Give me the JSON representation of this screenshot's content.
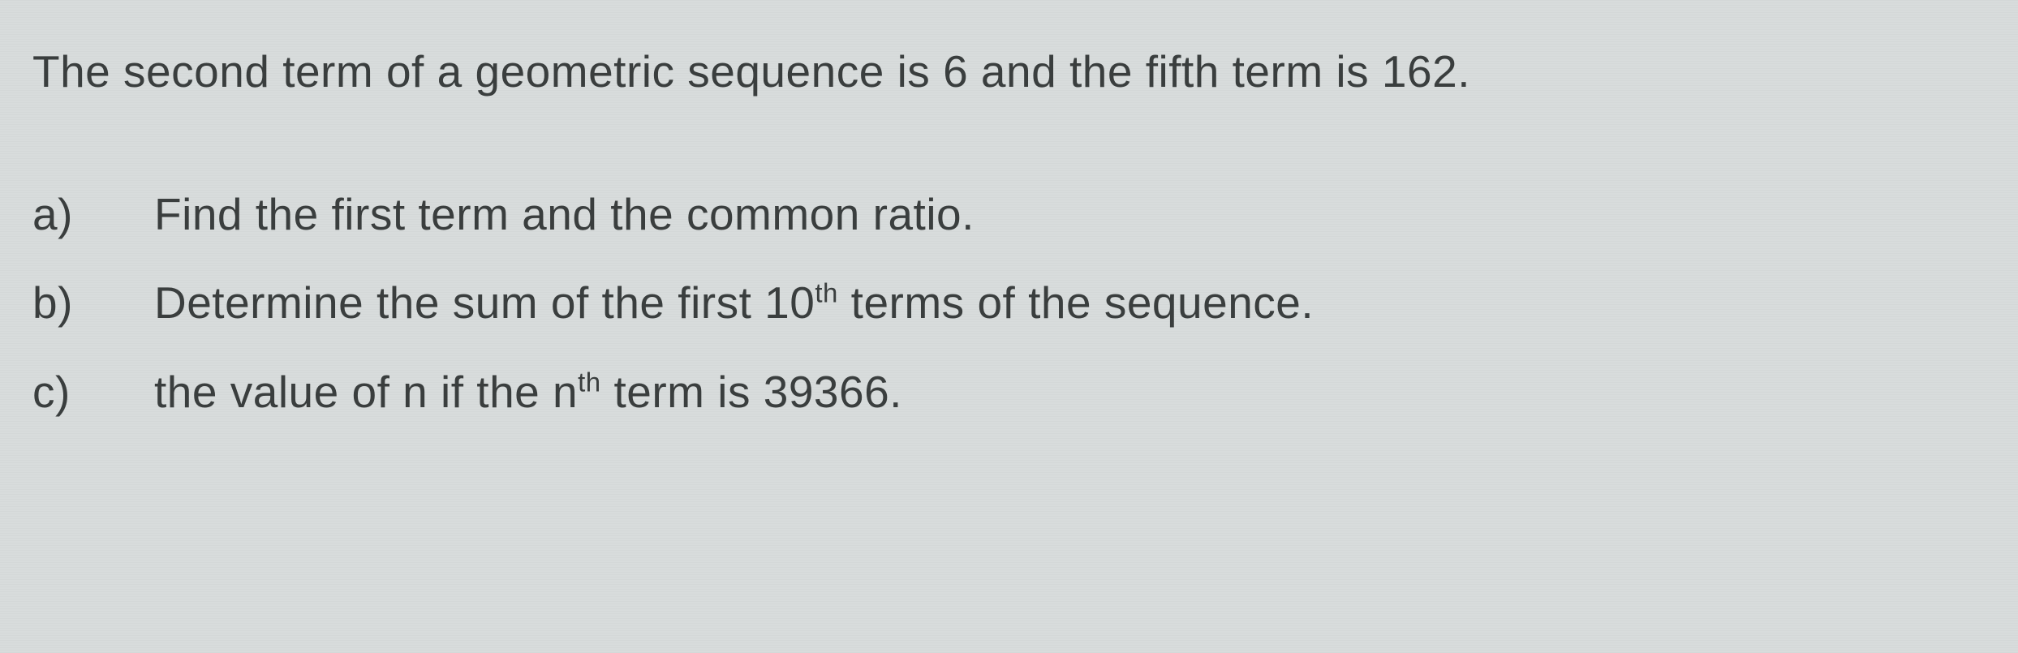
{
  "problem": {
    "statement": "The second term of a geometric sequence is 6 and the fifth term is 162.",
    "questions": [
      {
        "label": "a)",
        "text_before": "Find the first term and the common ratio.",
        "has_sup": false
      },
      {
        "label": "b)",
        "text_before": "Determine the sum of the first 10",
        "sup": "th",
        "text_after": " terms of the sequence.",
        "has_sup": true
      },
      {
        "label": "c)",
        "text_before": "the value of n if the n",
        "sup": "th",
        "text_after": " term is 39366.",
        "has_sup": true
      }
    ]
  },
  "styling": {
    "background_color": "#d8dcdc",
    "text_color": "#3a3e3e",
    "font_family": "Arial",
    "main_font_size": 55,
    "label_width": 150
  }
}
